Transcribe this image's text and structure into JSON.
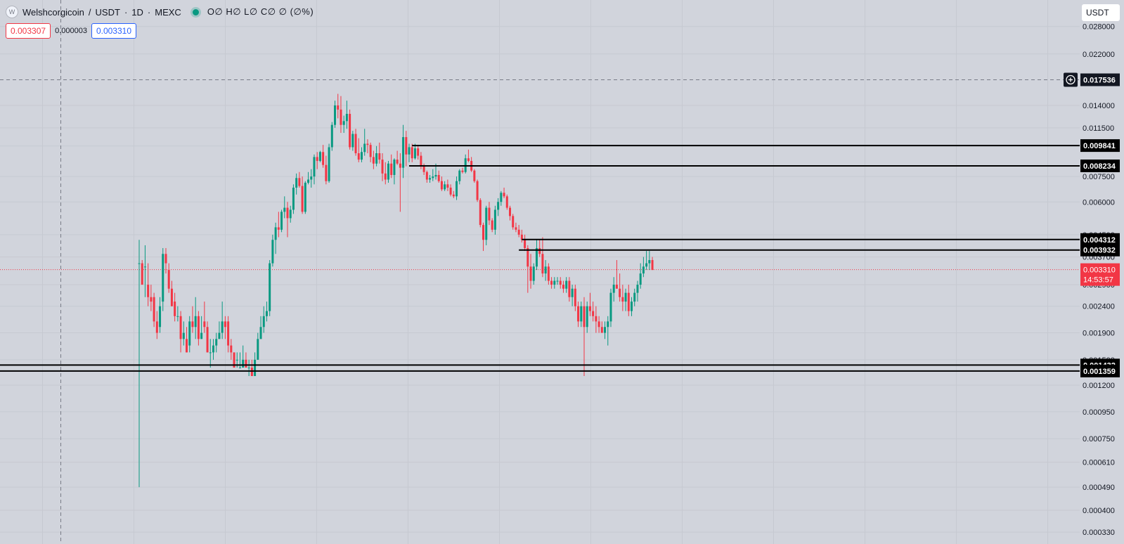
{
  "header": {
    "logo_letter": "W",
    "symbol": "Welshcorgicoin",
    "quote": "USDT",
    "interval": "1D",
    "exchange": "MEXC",
    "ohlc_text": "O∅ H∅ L∅ C∅ ∅ (∅%)"
  },
  "prices": {
    "sell": "0.003307",
    "spread": "0.000003",
    "buy": "0.003310"
  },
  "currency_button": "USDT",
  "colors": {
    "background": "#d1d4dc",
    "up": "#089981",
    "down": "#f23645",
    "level_line": "#000000",
    "current_price": "#f23645"
  },
  "icons": {
    "logo": "welshcorgicoin-logo",
    "crosshair_add": "plus-circle-icon",
    "status": "market-open-dot"
  },
  "chart_data": {
    "type": "candlestick",
    "scale": "log",
    "ylim": [
      0.0003,
      0.032
    ],
    "y_ticks": [
      "0.028000",
      "0.022000",
      "0.014000",
      "0.011500",
      "0.009800",
      "0.007500",
      "0.006000",
      "0.004500",
      "0.003700",
      "0.002900",
      "0.002400",
      "0.001900",
      "0.001500",
      "0.001200",
      "0.000950",
      "0.000750",
      "0.000610",
      "0.000490",
      "0.000400",
      "0.000330"
    ],
    "crosshair_price": "0.017536",
    "current_price": {
      "value": "0.003310",
      "countdown": "14:53:57"
    },
    "horizontal_levels": [
      {
        "value": "0.009841",
        "start_bar": 92
      },
      {
        "value": "0.008234",
        "start_bar": 91
      },
      {
        "value": "0.004312",
        "start_bar": 129
      },
      {
        "value": "0.003932",
        "start_bar": 128
      },
      {
        "value": "0.001432",
        "start_bar": 0
      },
      {
        "value": "0.001359",
        "start_bar": 0
      }
    ],
    "candles": [
      [
        0.0035,
        0.0043,
        0.00049,
        0.0035
      ],
      [
        0.0035,
        0.0036,
        0.0029,
        0.0029
      ],
      [
        0.0034,
        0.0041,
        0.0026,
        0.0034
      ],
      [
        0.0029,
        0.0035,
        0.0024,
        0.0026
      ],
      [
        0.0026,
        0.0029,
        0.0023,
        0.0025
      ],
      [
        0.0026,
        0.0027,
        0.002,
        0.0021
      ],
      [
        0.0021,
        0.0023,
        0.0018,
        0.0019
      ],
      [
        0.002,
        0.0026,
        0.0019,
        0.0024
      ],
      [
        0.0025,
        0.004,
        0.0023,
        0.0038
      ],
      [
        0.0038,
        0.004,
        0.0032,
        0.0035
      ],
      [
        0.0033,
        0.0035,
        0.0027,
        0.0028
      ],
      [
        0.0028,
        0.003,
        0.0024,
        0.0024
      ],
      [
        0.0025,
        0.0027,
        0.0021,
        0.0022
      ],
      [
        0.0022,
        0.0024,
        0.0021,
        0.0022
      ],
      [
        0.0022,
        0.0023,
        0.0016,
        0.0018
      ],
      [
        0.0018,
        0.0021,
        0.0017,
        0.0019
      ],
      [
        0.0018,
        0.002,
        0.0016,
        0.0016
      ],
      [
        0.0017,
        0.0022,
        0.0016,
        0.0021
      ],
      [
        0.0021,
        0.0024,
        0.0019,
        0.002
      ],
      [
        0.002,
        0.0026,
        0.0018,
        0.0022
      ],
      [
        0.0022,
        0.0023,
        0.0017,
        0.0018
      ],
      [
        0.0018,
        0.0022,
        0.0018,
        0.0019
      ],
      [
        0.0021,
        0.0025,
        0.0019,
        0.002
      ],
      [
        0.002,
        0.0021,
        0.0016,
        0.0016
      ],
      [
        0.0016,
        0.0018,
        0.0014,
        0.0016
      ],
      [
        0.0016,
        0.0018,
        0.0015,
        0.0017
      ],
      [
        0.0017,
        0.0019,
        0.0016,
        0.0018
      ],
      [
        0.0018,
        0.0021,
        0.0018,
        0.0019
      ],
      [
        0.0019,
        0.0025,
        0.0018,
        0.0021
      ],
      [
        0.0021,
        0.0022,
        0.0018,
        0.002
      ],
      [
        0.0021,
        0.0022,
        0.0016,
        0.0017
      ],
      [
        0.0017,
        0.0018,
        0.0015,
        0.0016
      ],
      [
        0.0016,
        0.0016,
        0.0014,
        0.0014
      ],
      [
        0.0015,
        0.0016,
        0.0014,
        0.0015
      ],
      [
        0.0014,
        0.0016,
        0.0014,
        0.0014
      ],
      [
        0.0014,
        0.0017,
        0.0014,
        0.0015
      ],
      [
        0.0015,
        0.0016,
        0.0014,
        0.0014
      ],
      [
        0.0014,
        0.0015,
        0.0013,
        0.0014
      ],
      [
        0.0014,
        0.0015,
        0.0013,
        0.0013
      ],
      [
        0.0013,
        0.0016,
        0.0013,
        0.0015
      ],
      [
        0.0015,
        0.0019,
        0.0015,
        0.0018
      ],
      [
        0.0018,
        0.0022,
        0.0018,
        0.002
      ],
      [
        0.002,
        0.0024,
        0.0019,
        0.0022
      ],
      [
        0.0022,
        0.0025,
        0.0021,
        0.0023
      ],
      [
        0.0023,
        0.0036,
        0.0022,
        0.0035
      ],
      [
        0.0035,
        0.0045,
        0.0034,
        0.0043
      ],
      [
        0.0043,
        0.005,
        0.0038,
        0.0048
      ],
      [
        0.0048,
        0.0055,
        0.0044,
        0.0047
      ],
      [
        0.0047,
        0.0056,
        0.0046,
        0.0055
      ],
      [
        0.0055,
        0.0063,
        0.0052,
        0.0057
      ],
      [
        0.0057,
        0.006,
        0.0044,
        0.0052
      ],
      [
        0.0052,
        0.0058,
        0.005,
        0.0056
      ],
      [
        0.0056,
        0.007,
        0.0054,
        0.0068
      ],
      [
        0.0068,
        0.0077,
        0.0064,
        0.0074
      ],
      [
        0.0074,
        0.0078,
        0.0068,
        0.0069
      ],
      [
        0.0069,
        0.0075,
        0.0054,
        0.0055
      ],
      [
        0.0055,
        0.0072,
        0.0054,
        0.0071
      ],
      [
        0.0071,
        0.0078,
        0.007,
        0.0073
      ],
      [
        0.0073,
        0.008,
        0.0068,
        0.0075
      ],
      [
        0.0075,
        0.0091,
        0.007,
        0.0089
      ],
      [
        0.0089,
        0.0093,
        0.008,
        0.0086
      ],
      [
        0.0086,
        0.0094,
        0.0085,
        0.0093
      ],
      [
        0.0093,
        0.0099,
        0.0081,
        0.0083
      ],
      [
        0.0083,
        0.009,
        0.007,
        0.0072
      ],
      [
        0.0072,
        0.01,
        0.0071,
        0.0097
      ],
      [
        0.0097,
        0.0121,
        0.0094,
        0.0118
      ],
      [
        0.0118,
        0.0146,
        0.0115,
        0.014
      ],
      [
        0.014,
        0.0155,
        0.0125,
        0.0135
      ],
      [
        0.0135,
        0.0152,
        0.011,
        0.0118
      ],
      [
        0.0118,
        0.0128,
        0.011,
        0.0122
      ],
      [
        0.0122,
        0.0146,
        0.0114,
        0.013
      ],
      [
        0.013,
        0.0135,
        0.0095,
        0.0097
      ],
      [
        0.0097,
        0.0112,
        0.0094,
        0.0109
      ],
      [
        0.0109,
        0.0114,
        0.009,
        0.0092
      ],
      [
        0.0092,
        0.0105,
        0.0085,
        0.0087
      ],
      [
        0.0087,
        0.0097,
        0.0085,
        0.0093
      ],
      [
        0.0093,
        0.0114,
        0.009,
        0.01
      ],
      [
        0.01,
        0.0104,
        0.0092,
        0.0099
      ],
      [
        0.0099,
        0.0101,
        0.0085,
        0.0089
      ],
      [
        0.0089,
        0.0094,
        0.008,
        0.0084
      ],
      [
        0.0084,
        0.0098,
        0.0082,
        0.0092
      ],
      [
        0.0092,
        0.0101,
        0.0084,
        0.0087
      ],
      [
        0.0087,
        0.0092,
        0.0072,
        0.0077
      ],
      [
        0.0077,
        0.0085,
        0.007,
        0.0073
      ],
      [
        0.0073,
        0.0086,
        0.0071,
        0.0084
      ],
      [
        0.0084,
        0.0091,
        0.0074,
        0.0076
      ],
      [
        0.0076,
        0.0088,
        0.007,
        0.0087
      ],
      [
        0.0087,
        0.0094,
        0.0083,
        0.0084
      ],
      [
        0.0084,
        0.0092,
        0.0055,
        0.0081
      ],
      [
        0.0081,
        0.0118,
        0.0074,
        0.0106
      ],
      [
        0.0106,
        0.0112,
        0.0082,
        0.0091
      ],
      [
        0.0091,
        0.01,
        0.0085,
        0.0097
      ],
      [
        0.0097,
        0.01,
        0.0085,
        0.0088
      ],
      [
        0.0088,
        0.01,
        0.0087,
        0.0096
      ],
      [
        0.0096,
        0.0099,
        0.0087,
        0.009
      ],
      [
        0.009,
        0.0093,
        0.008,
        0.0082
      ],
      [
        0.0082,
        0.0084,
        0.0076,
        0.0078
      ],
      [
        0.0078,
        0.0079,
        0.0071,
        0.0073
      ],
      [
        0.0073,
        0.0076,
        0.0071,
        0.0074
      ],
      [
        0.0074,
        0.008,
        0.0072,
        0.0075
      ],
      [
        0.0075,
        0.0084,
        0.0073,
        0.0076
      ],
      [
        0.0076,
        0.0079,
        0.0071,
        0.0072
      ],
      [
        0.0072,
        0.0075,
        0.0066,
        0.0067
      ],
      [
        0.0067,
        0.0072,
        0.0066,
        0.007
      ],
      [
        0.007,
        0.0073,
        0.0066,
        0.0068
      ],
      [
        0.0068,
        0.007,
        0.0063,
        0.0064
      ],
      [
        0.0064,
        0.0066,
        0.0062,
        0.0063
      ],
      [
        0.0063,
        0.0075,
        0.0061,
        0.0072
      ],
      [
        0.0072,
        0.008,
        0.007,
        0.0079
      ],
      [
        0.0079,
        0.0081,
        0.0077,
        0.0078
      ],
      [
        0.0078,
        0.0091,
        0.0077,
        0.0088
      ],
      [
        0.0088,
        0.0095,
        0.0085,
        0.0086
      ],
      [
        0.0086,
        0.0089,
        0.0078,
        0.0079
      ],
      [
        0.0079,
        0.008,
        0.0071,
        0.0072
      ],
      [
        0.0072,
        0.0073,
        0.006,
        0.0061
      ],
      [
        0.0061,
        0.0062,
        0.0048,
        0.0049
      ],
      [
        0.0049,
        0.005,
        0.0039,
        0.0043
      ],
      [
        0.0043,
        0.0058,
        0.0041,
        0.0057
      ],
      [
        0.0057,
        0.006,
        0.0049,
        0.0051
      ],
      [
        0.0051,
        0.0052,
        0.0046,
        0.0047
      ],
      [
        0.0047,
        0.0058,
        0.0045,
        0.0056
      ],
      [
        0.0056,
        0.0062,
        0.0053,
        0.006
      ],
      [
        0.006,
        0.0066,
        0.0058,
        0.0065
      ],
      [
        0.0065,
        0.0068,
        0.0062,
        0.0063
      ],
      [
        0.0063,
        0.0064,
        0.0056,
        0.0057
      ],
      [
        0.0057,
        0.0058,
        0.0051,
        0.0053
      ],
      [
        0.0053,
        0.0054,
        0.0047,
        0.0048
      ],
      [
        0.0048,
        0.005,
        0.0046,
        0.0047
      ],
      [
        0.0047,
        0.0049,
        0.0044,
        0.0045
      ],
      [
        0.0045,
        0.0047,
        0.0042,
        0.0043
      ],
      [
        0.0043,
        0.0045,
        0.0039,
        0.004
      ],
      [
        0.004,
        0.0041,
        0.0027,
        0.0034
      ],
      [
        0.0034,
        0.0038,
        0.0028,
        0.003
      ],
      [
        0.003,
        0.0035,
        0.0029,
        0.0034
      ],
      [
        0.0034,
        0.0043,
        0.0033,
        0.004
      ],
      [
        0.004,
        0.0043,
        0.0037,
        0.0038
      ],
      [
        0.0038,
        0.0044,
        0.0031,
        0.0032
      ],
      [
        0.0032,
        0.0036,
        0.003,
        0.0034
      ],
      [
        0.0034,
        0.0035,
        0.0029,
        0.003
      ],
      [
        0.003,
        0.0031,
        0.0028,
        0.0029
      ],
      [
        0.0029,
        0.0031,
        0.0028,
        0.003
      ],
      [
        0.003,
        0.0031,
        0.0029,
        0.003
      ],
      [
        0.003,
        0.0031,
        0.0028,
        0.0029
      ],
      [
        0.0029,
        0.003,
        0.0027,
        0.0028
      ],
      [
        0.0028,
        0.0031,
        0.0027,
        0.003
      ],
      [
        0.003,
        0.0031,
        0.0025,
        0.0026
      ],
      [
        0.0026,
        0.0029,
        0.0024,
        0.0028
      ],
      [
        0.0028,
        0.0029,
        0.0023,
        0.0024
      ],
      [
        0.0024,
        0.0025,
        0.002,
        0.0021
      ],
      [
        0.0021,
        0.0025,
        0.002,
        0.0024
      ],
      [
        0.0024,
        0.0026,
        0.0013,
        0.002
      ],
      [
        0.002,
        0.0025,
        0.0019,
        0.0024
      ],
      [
        0.0024,
        0.0027,
        0.0022,
        0.0023
      ],
      [
        0.0023,
        0.0025,
        0.0021,
        0.0022
      ],
      [
        0.0022,
        0.0024,
        0.0019,
        0.0021
      ],
      [
        0.0021,
        0.0022,
        0.0019,
        0.002
      ],
      [
        0.002,
        0.0021,
        0.0019,
        0.0019
      ],
      [
        0.0019,
        0.0021,
        0.0018,
        0.002
      ],
      [
        0.002,
        0.0022,
        0.0017,
        0.0021
      ],
      [
        0.0021,
        0.0028,
        0.002,
        0.0027
      ],
      [
        0.0027,
        0.0031,
        0.0025,
        0.0029
      ],
      [
        0.0029,
        0.0036,
        0.0028,
        0.0028
      ],
      [
        0.0028,
        0.0032,
        0.0025,
        0.0026
      ],
      [
        0.0026,
        0.0029,
        0.0023,
        0.0025
      ],
      [
        0.0025,
        0.0028,
        0.0023,
        0.0027
      ],
      [
        0.0027,
        0.0029,
        0.0022,
        0.0023
      ],
      [
        0.0023,
        0.0026,
        0.0022,
        0.0025
      ],
      [
        0.0025,
        0.0028,
        0.0024,
        0.0027
      ],
      [
        0.0027,
        0.003,
        0.0025,
        0.0029
      ],
      [
        0.0029,
        0.0035,
        0.0028,
        0.0032
      ],
      [
        0.0032,
        0.0037,
        0.0031,
        0.0034
      ],
      [
        0.0034,
        0.0039,
        0.0033,
        0.0035
      ],
      [
        0.0035,
        0.0039,
        0.0033,
        0.0036
      ],
      [
        0.0036,
        0.0037,
        0.0033,
        0.0033
      ]
    ]
  }
}
